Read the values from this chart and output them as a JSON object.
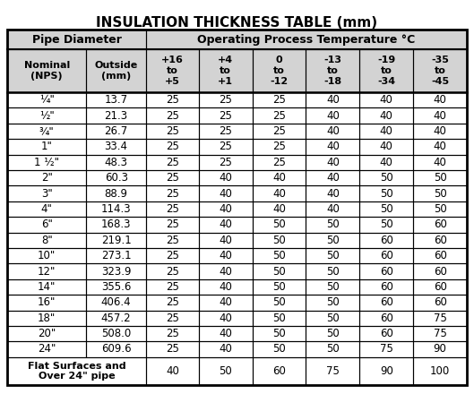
{
  "title": "INSULATION THICKNESS TABLE (mm)",
  "col_header_row2": [
    "Nominal\n(NPS)",
    "Outside\n(mm)",
    "+16\nto\n+5",
    "+4\nto\n+1",
    "0\nto\n-12",
    "-13\nto\n-18",
    "-19\nto\n-34",
    "-35\nto\n-45"
  ],
  "rows": [
    [
      "¼\"",
      "13.7",
      "25",
      "25",
      "25",
      "40",
      "40",
      "40"
    ],
    [
      "½\"",
      "21.3",
      "25",
      "25",
      "25",
      "40",
      "40",
      "40"
    ],
    [
      "¾\"",
      "26.7",
      "25",
      "25",
      "25",
      "40",
      "40",
      "40"
    ],
    [
      "1\"",
      "33.4",
      "25",
      "25",
      "25",
      "40",
      "40",
      "40"
    ],
    [
      "1 ½\"",
      "48.3",
      "25",
      "25",
      "25",
      "40",
      "40",
      "40"
    ],
    [
      "2\"",
      "60.3",
      "25",
      "40",
      "40",
      "40",
      "50",
      "50"
    ],
    [
      "3\"",
      "88.9",
      "25",
      "40",
      "40",
      "40",
      "50",
      "50"
    ],
    [
      "4\"",
      "114.3",
      "25",
      "40",
      "40",
      "40",
      "50",
      "50"
    ],
    [
      "6\"",
      "168.3",
      "25",
      "40",
      "50",
      "50",
      "50",
      "60"
    ],
    [
      "8\"",
      "219.1",
      "25",
      "40",
      "50",
      "50",
      "60",
      "60"
    ],
    [
      "10\"",
      "273.1",
      "25",
      "40",
      "50",
      "50",
      "60",
      "60"
    ],
    [
      "12\"",
      "323.9",
      "25",
      "40",
      "50",
      "50",
      "60",
      "60"
    ],
    [
      "14\"",
      "355.6",
      "25",
      "40",
      "50",
      "50",
      "60",
      "60"
    ],
    [
      "16\"",
      "406.4",
      "25",
      "40",
      "50",
      "50",
      "60",
      "60"
    ],
    [
      "18\"",
      "457.2",
      "25",
      "40",
      "50",
      "50",
      "60",
      "75"
    ],
    [
      "20\"",
      "508.0",
      "25",
      "40",
      "50",
      "50",
      "60",
      "75"
    ],
    [
      "24\"",
      "609.6",
      "25",
      "40",
      "50",
      "50",
      "75",
      "90"
    ],
    [
      "Flat Surfaces and\nOver 24\" pipe",
      "",
      "40",
      "50",
      "60",
      "75",
      "90",
      "100"
    ]
  ],
  "bg_color": "#ffffff",
  "header_bg": "#d3d3d3",
  "border_color": "#000000",
  "text_color": "#000000",
  "title_fontsize": 11,
  "header1_fontsize": 9,
  "header2_fontsize": 8,
  "data_fontsize": 8.5
}
